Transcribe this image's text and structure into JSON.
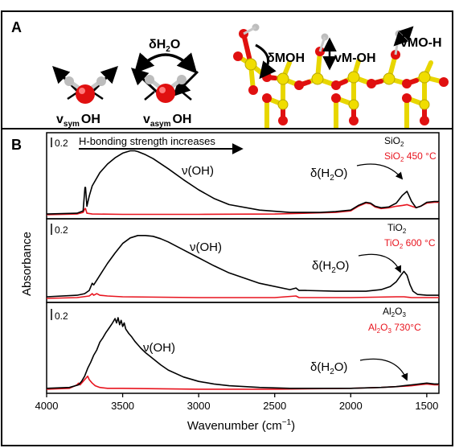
{
  "panel_a": {
    "label": "A",
    "bend_label": "δH",
    "bend_sub": "2",
    "bend_tail": "O",
    "sym_v": "v",
    "sym_sub": "sym",
    "sym_tail": "OH",
    "asym_v": "v",
    "asym_sub": "asym",
    "asym_tail": "OH",
    "surface_labels": [
      "δMOH",
      "vM-OH",
      "vMO-H"
    ]
  },
  "chart_data": {
    "type": "line",
    "panel_label": "B",
    "xlabel_main": "Wavenumber (cm",
    "xlabel_sup": "−1",
    "xlabel_tail": ")",
    "ylabel": "Absorbance",
    "xlim": [
      4000,
      1420
    ],
    "x_ticks": [
      4000,
      3500,
      3000,
      2500,
      2000,
      1500
    ],
    "x_tick_labels": [
      "4000",
      "3500",
      "3000",
      "2500",
      "2000",
      "1500"
    ],
    "hbond_label": "H-bonding strength increases",
    "colors": {
      "dehydrated": "#e8141e",
      "hydrated": "#000000"
    },
    "subplots": [
      {
        "scale_label": "0.2",
        "oh_label": "ν(OH)",
        "water_label": "δ(H",
        "water_sub": "2",
        "water_tail": "O)",
        "legend_top": "SiO",
        "legend_top_sub": "2",
        "legend_bottom": "SiO",
        "legend_bottom_sub": "2",
        "legend_bottom_tail": " 450 °C",
        "ylim": [
          0,
          1.0
        ],
        "series": [
          {
            "name": "SiO2",
            "x": [
              4000,
              3800,
              3760,
              3748,
              3744,
              3735,
              3720,
              3700,
              3650,
              3600,
              3550,
              3500,
              3450,
              3420,
              3400,
              3350,
              3300,
              3200,
              3100,
              3000,
              2900,
              2800,
              2600,
              2400,
              2200,
              2100,
              2000,
              1950,
              1900,
              1870,
              1840,
              1800,
              1750,
              1700,
              1660,
              1630,
              1600,
              1570,
              1540,
              1500,
              1450,
              1420
            ],
            "y": [
              0.02,
              0.03,
              0.06,
              0.36,
              0.36,
              0.12,
              0.25,
              0.38,
              0.55,
              0.66,
              0.74,
              0.8,
              0.83,
              0.83,
              0.82,
              0.78,
              0.73,
              0.6,
              0.46,
              0.33,
              0.22,
              0.14,
              0.07,
              0.04,
              0.04,
              0.05,
              0.07,
              0.13,
              0.17,
              0.16,
              0.12,
              0.1,
              0.11,
              0.16,
              0.26,
              0.31,
              0.18,
              0.1,
              0.12,
              0.17,
              0.18,
              0.18
            ]
          },
          {
            "name": "SiO2 450 °C",
            "x": [
              4000,
              3800,
              3760,
              3748,
              3744,
              3735,
              3700,
              3500,
              3000,
              2500,
              2100,
              2000,
              1950,
              1900,
              1870,
              1840,
              1800,
              1750,
              1700,
              1660,
              1630,
              1600,
              1570,
              1540,
              1500,
              1450,
              1420
            ],
            "y": [
              0.01,
              0.02,
              0.04,
              0.09,
              0.09,
              0.03,
              0.02,
              0.015,
              0.015,
              0.02,
              0.04,
              0.06,
              0.12,
              0.16,
              0.15,
              0.11,
              0.09,
              0.1,
              0.12,
              0.13,
              0.14,
              0.12,
              0.1,
              0.12,
              0.16,
              0.17,
              0.17
            ]
          }
        ]
      },
      {
        "scale_label": "0.2",
        "oh_label": "ν(OH)",
        "water_label": "δ(H",
        "water_sub": "2",
        "water_tail": "O)",
        "legend_top": "TiO",
        "legend_top_sub": "2",
        "legend_bottom": "TiO",
        "legend_bottom_sub": "2",
        "legend_bottom_tail": " 600 °C",
        "ylim": [
          0,
          0.95
        ],
        "series": [
          {
            "name": "TiO2",
            "x": [
              4000,
              3800,
              3750,
              3720,
              3700,
              3690,
              3670,
              3650,
              3600,
              3550,
              3500,
              3450,
              3400,
              3350,
              3300,
              3250,
              3200,
              3100,
              3000,
              2900,
              2800,
              2600,
              2400,
              2360,
              2340,
              2300,
              2100,
              1900,
              1800,
              1740,
              1700,
              1670,
              1650,
              1630,
              1610,
              1590,
              1560,
              1500,
              1420
            ],
            "y": [
              0.03,
              0.05,
              0.07,
              0.11,
              0.2,
              0.18,
              0.24,
              0.3,
              0.45,
              0.58,
              0.7,
              0.77,
              0.8,
              0.8,
              0.79,
              0.76,
              0.72,
              0.62,
              0.52,
              0.42,
              0.33,
              0.2,
              0.12,
              0.14,
              0.11,
              0.11,
              0.1,
              0.1,
              0.12,
              0.16,
              0.22,
              0.3,
              0.35,
              0.3,
              0.18,
              0.1,
              0.06,
              0.05,
              0.05
            ]
          },
          {
            "name": "TiO2 600 °C",
            "x": [
              4000,
              3800,
              3720,
              3700,
              3690,
              3670,
              3650,
              3600,
              3500,
              3000,
              2500,
              2360,
              2340,
              2300,
              2000,
              1700,
              1650,
              1600,
              1500,
              1420
            ],
            "y": [
              0.01,
              0.02,
              0.04,
              0.07,
              0.05,
              0.07,
              0.05,
              0.04,
              0.03,
              0.02,
              0.02,
              0.04,
              0.02,
              0.02,
              0.02,
              0.03,
              0.03,
              0.02,
              0.02,
              0.02
            ]
          }
        ]
      },
      {
        "scale_label": "0.2",
        "oh_label": "ν(OH)",
        "water_label": "δ(H",
        "water_sub": "2",
        "water_tail": "O)",
        "legend_top": "Al",
        "legend_top_sub": "2",
        "legend_top_mid": "O",
        "legend_top_sub2": "3",
        "legend_bottom": "Al",
        "legend_bottom_sub": "2",
        "legend_bottom_mid": "O",
        "legend_bottom_sub2": "3",
        "legend_bottom_tail": " 730°C",
        "ylim": [
          0,
          0.95
        ],
        "series": [
          {
            "name": "Al2O3",
            "x": [
              4000,
              3850,
              3790,
              3770,
              3750,
              3730,
              3710,
              3690,
              3670,
              3650,
              3630,
              3610,
              3590,
              3570,
              3550,
              3540,
              3530,
              3520,
              3510,
              3500,
              3490,
              3480,
              3460,
              3440,
              3420,
              3400,
              3380,
              3350,
              3300,
              3250,
              3200,
              3100,
              3000,
              2900,
              2800,
              2600,
              2400,
              2200,
              2000,
              1800,
              1700,
              1650,
              1600,
              1550,
              1500,
              1450,
              1420
            ],
            "y": [
              0.02,
              0.03,
              0.06,
              0.1,
              0.16,
              0.25,
              0.32,
              0.4,
              0.46,
              0.55,
              0.6,
              0.66,
              0.71,
              0.76,
              0.82,
              0.77,
              0.83,
              0.75,
              0.8,
              0.73,
              0.77,
              0.7,
              0.65,
              0.61,
              0.56,
              0.52,
              0.48,
              0.43,
              0.36,
              0.29,
              0.23,
              0.15,
              0.1,
              0.07,
              0.05,
              0.03,
              0.02,
              0.02,
              0.02,
              0.03,
              0.04,
              0.05,
              0.06,
              0.07,
              0.08,
              0.07,
              0.07
            ]
          },
          {
            "name": "Al2O3 730°C",
            "x": [
              4000,
              3850,
              3800,
              3790,
              3780,
              3760,
              3740,
              3730,
              3720,
              3700,
              3680,
              3650,
              3600,
              3500,
              3000,
              2500,
              2000,
              1800,
              1700,
              1600,
              1550,
              1500,
              1450,
              1420
            ],
            "y": [
              0.01,
              0.02,
              0.06,
              0.08,
              0.06,
              0.1,
              0.14,
              0.16,
              0.12,
              0.08,
              0.05,
              0.03,
              0.02,
              0.02,
              0.01,
              0.01,
              0.02,
              0.03,
              0.04,
              0.05,
              0.06,
              0.07,
              0.06,
              0.06
            ]
          }
        ]
      }
    ]
  }
}
